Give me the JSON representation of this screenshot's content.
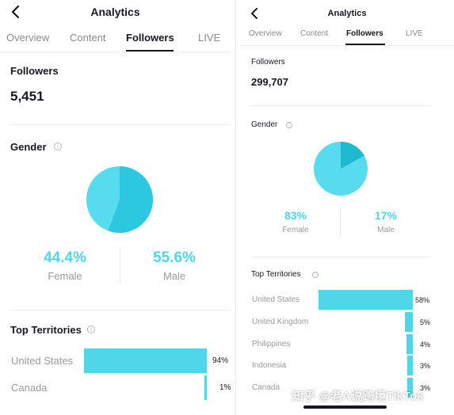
{
  "left": {
    "header_title": "Analytics",
    "tabs": [
      "Overview",
      "Content",
      "Followers",
      "LIVE"
    ],
    "active_tab": 2,
    "followers_label": "Followers",
    "followers_value": "5,451",
    "gender_label": "Gender",
    "female": {
      "pct": "44.4%",
      "label": "Female",
      "value": 44.4
    },
    "male": {
      "pct": "55.6%",
      "label": "Male",
      "value": 55.6
    },
    "territories_label": "Top Territories",
    "territories": [
      {
        "name": "United States",
        "pct": "94%",
        "value": 94
      },
      {
        "name": "Canada",
        "pct": "1%",
        "value": 1
      }
    ]
  },
  "right": {
    "header_title": "Analytics",
    "tabs": [
      "Overview",
      "Content",
      "Followers",
      "LIVE"
    ],
    "active_tab": 2,
    "followers_label": "Followers",
    "followers_value": "299,707",
    "gender_label": "Gender",
    "female": {
      "pct": "83%",
      "label": "Female",
      "value": 83
    },
    "male": {
      "pct": "17%",
      "label": "Male",
      "value": 17
    },
    "territories_label": "Top Territories",
    "territories": [
      {
        "name": "United States",
        "pct": "58%",
        "value": 58
      },
      {
        "name": "United Kingdom",
        "pct": "5%",
        "value": 5
      },
      {
        "name": "Philippines",
        "pct": "4%",
        "value": 4
      },
      {
        "name": "Indonesia",
        "pct": "3%",
        "value": 3
      },
      {
        "name": "Canada",
        "pct": "3%",
        "value": 3
      }
    ]
  },
  "watermark": "知乎 @老A说跨境TikTok",
  "icons": {
    "back": "chevron-left-icon",
    "info": "info-icon"
  },
  "colors": {
    "accent": "#4fd6e8",
    "accent_dark": "#22c1d9",
    "text": "#161823",
    "muted": "#9a9aa0"
  }
}
